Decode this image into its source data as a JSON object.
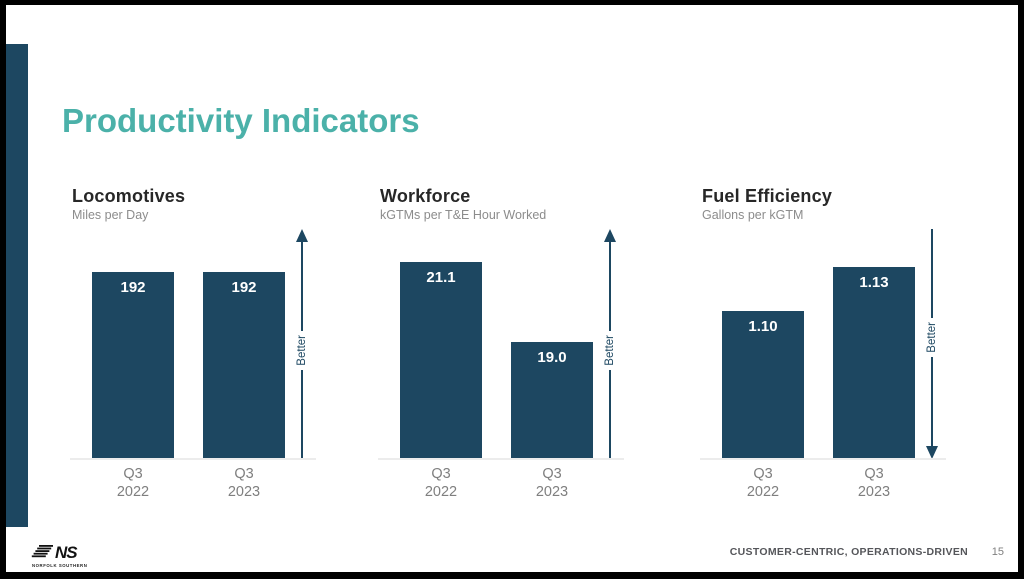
{
  "slide": {
    "title": "Productivity Indicators",
    "footer": {
      "tagline": "CUSTOMER-CENTRIC, OPERATIONS-DRIVEN",
      "page_number": "15"
    },
    "logo": {
      "monogram": "NS",
      "caption": "NORFOLK SOUTHERN"
    }
  },
  "colors": {
    "title_teal": "#4bb1a9",
    "bar_navy": "#1d4761",
    "category_gray": "#7f7f7f",
    "subtitle_gray": "#8c8c8c",
    "axis_line_gray": "#ececec",
    "value_label": "#ffffff",
    "footer_text": "#55565a"
  },
  "chart_data": [
    {
      "type": "bar",
      "title": "Locomotives",
      "subtitle": "Miles per Day",
      "categories": [
        {
          "line1": "Q3",
          "line2": "2022"
        },
        {
          "line1": "Q3",
          "line2": "2023"
        }
      ],
      "values": [
        192,
        192
      ],
      "value_labels": [
        "192",
        "192"
      ],
      "ylim": [
        0,
        243
      ],
      "grid": false,
      "legend": "none",
      "better_arrow": "up",
      "better_label": "Better"
    },
    {
      "type": "bar",
      "title": "Workforce",
      "subtitle": "kGTMs per T&E Hour Worked",
      "categories": [
        {
          "line1": "Q3",
          "line2": "2022"
        },
        {
          "line1": "Q3",
          "line2": "2023"
        }
      ],
      "values": [
        21.1,
        19.0
      ],
      "value_labels": [
        "21.1",
        "19.0"
      ],
      "ylim": [
        16,
        22.1
      ],
      "grid": false,
      "legend": "none",
      "better_arrow": "up",
      "better_label": "Better"
    },
    {
      "type": "bar",
      "title": "Fuel Efficiency",
      "subtitle": "Gallons per kGTM",
      "categories": [
        {
          "line1": "Q3",
          "line2": "2022"
        },
        {
          "line1": "Q3",
          "line2": "2023"
        }
      ],
      "values": [
        1.1,
        1.13
      ],
      "value_labels": [
        "1.10",
        "1.13"
      ],
      "ylim": [
        1.0,
        1.16
      ],
      "grid": false,
      "legend": "none",
      "better_arrow": "down",
      "better_label": "Better"
    }
  ]
}
